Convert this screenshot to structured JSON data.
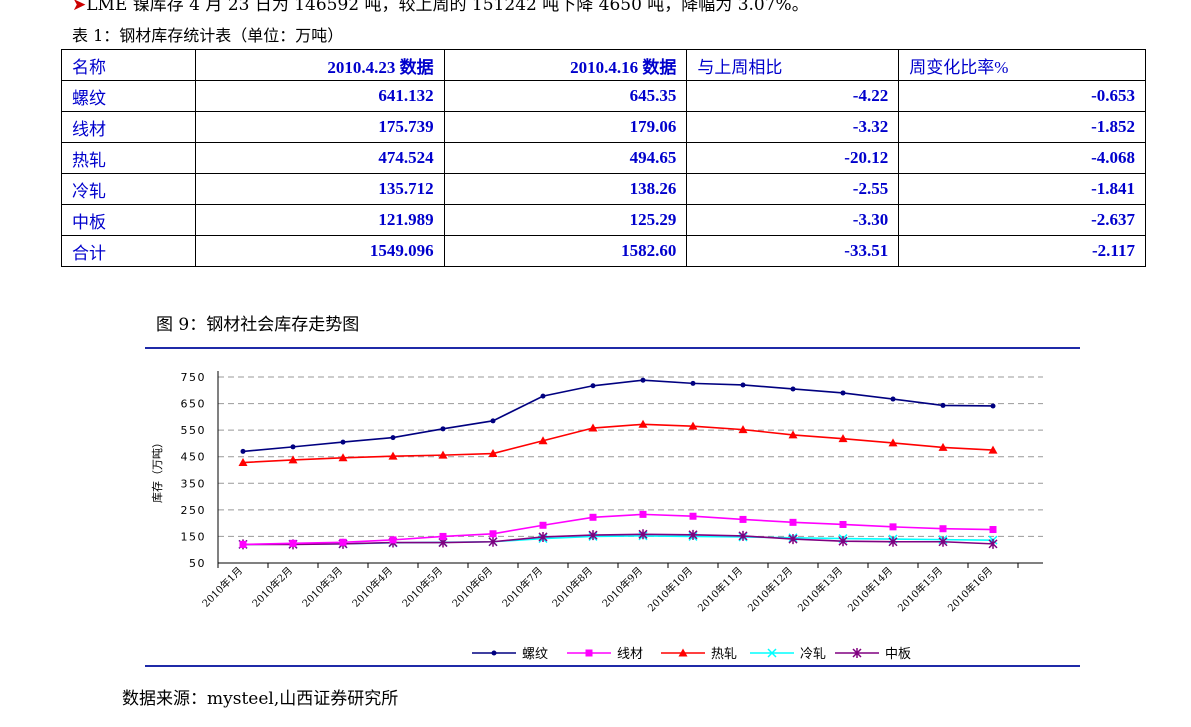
{
  "header_text": {
    "arrow": "➤",
    "text": "LME 镍库存 4 月 23 日为 146592 吨，较上周的 151242 吨下降 4650 吨，降幅为 3.07%。"
  },
  "table": {
    "caption": "表 1：钢材库存统计表（单位：万吨）",
    "headers": [
      "名称",
      "2010.4.23 数据",
      "2010.4.16 数据",
      "与上周相比",
      "周变化比率%"
    ],
    "rows": [
      [
        "螺纹",
        "641.132",
        "645.35",
        "-4.22",
        "-0.653"
      ],
      [
        "线材",
        "175.739",
        "179.06",
        "-3.32",
        "-1.852"
      ],
      [
        "热轧",
        "474.524",
        "494.65",
        "-20.12",
        "-4.068"
      ],
      [
        "冷轧",
        "135.712",
        "138.26",
        "-2.55",
        "-1.841"
      ],
      [
        "中板",
        "121.989",
        "125.29",
        "-3.30",
        "-2.637"
      ],
      [
        "合计",
        "1549.096",
        "1582.60",
        "-33.51",
        "-2.117"
      ]
    ]
  },
  "figure": {
    "title": "图 9：钢材社会库存走势图"
  },
  "chart_data": {
    "type": "line",
    "title": "",
    "xlabel": "",
    "ylabel": "库存（万吨）",
    "ylim": [
      50,
      750
    ],
    "yticks": [
      50,
      150,
      250,
      350,
      450,
      550,
      650,
      750
    ],
    "grid": true,
    "legend": "bottom",
    "x": [
      "2010年1月",
      "2010年2月",
      "2010年3月",
      "2010年4月",
      "2010年5月",
      "2010年6月",
      "2010年7月",
      "2010年8月",
      "2010年9月",
      "2010年10月",
      "2010年11月",
      "2010年12月",
      "2010年13月",
      "2010年14月",
      "2010年15月",
      "2010年16月"
    ],
    "series": [
      {
        "name": "螺纹",
        "color": "#000080",
        "marker": "diamond",
        "values": [
          470,
          487,
          505,
          522,
          555,
          585,
          678,
          717,
          738,
          726,
          720,
          705,
          690,
          667,
          643,
          641
        ]
      },
      {
        "name": "线材",
        "color": "#ff00ff",
        "marker": "square",
        "values": [
          120,
          124,
          128,
          137,
          150,
          160,
          192,
          222,
          233,
          226,
          214,
          203,
          195,
          186,
          179,
          176
        ]
      },
      {
        "name": "热轧",
        "color": "#ff0000",
        "marker": "triangle",
        "values": [
          428,
          438,
          446,
          452,
          456,
          462,
          510,
          558,
          572,
          565,
          552,
          532,
          518,
          502,
          485,
          475
        ]
      },
      {
        "name": "冷轧",
        "color": "#00ffff",
        "marker": "x",
        "values": [
          120,
          121,
          122,
          126,
          128,
          130,
          142,
          150,
          152,
          150,
          148,
          145,
          142,
          140,
          138,
          136
        ]
      },
      {
        "name": "中板",
        "color": "#800080",
        "marker": "star",
        "values": [
          120,
          120,
          122,
          127,
          127,
          130,
          148,
          155,
          158,
          156,
          152,
          140,
          132,
          130,
          130,
          122
        ]
      }
    ]
  },
  "source": "数据来源：mysteel,山西证券研究所"
}
